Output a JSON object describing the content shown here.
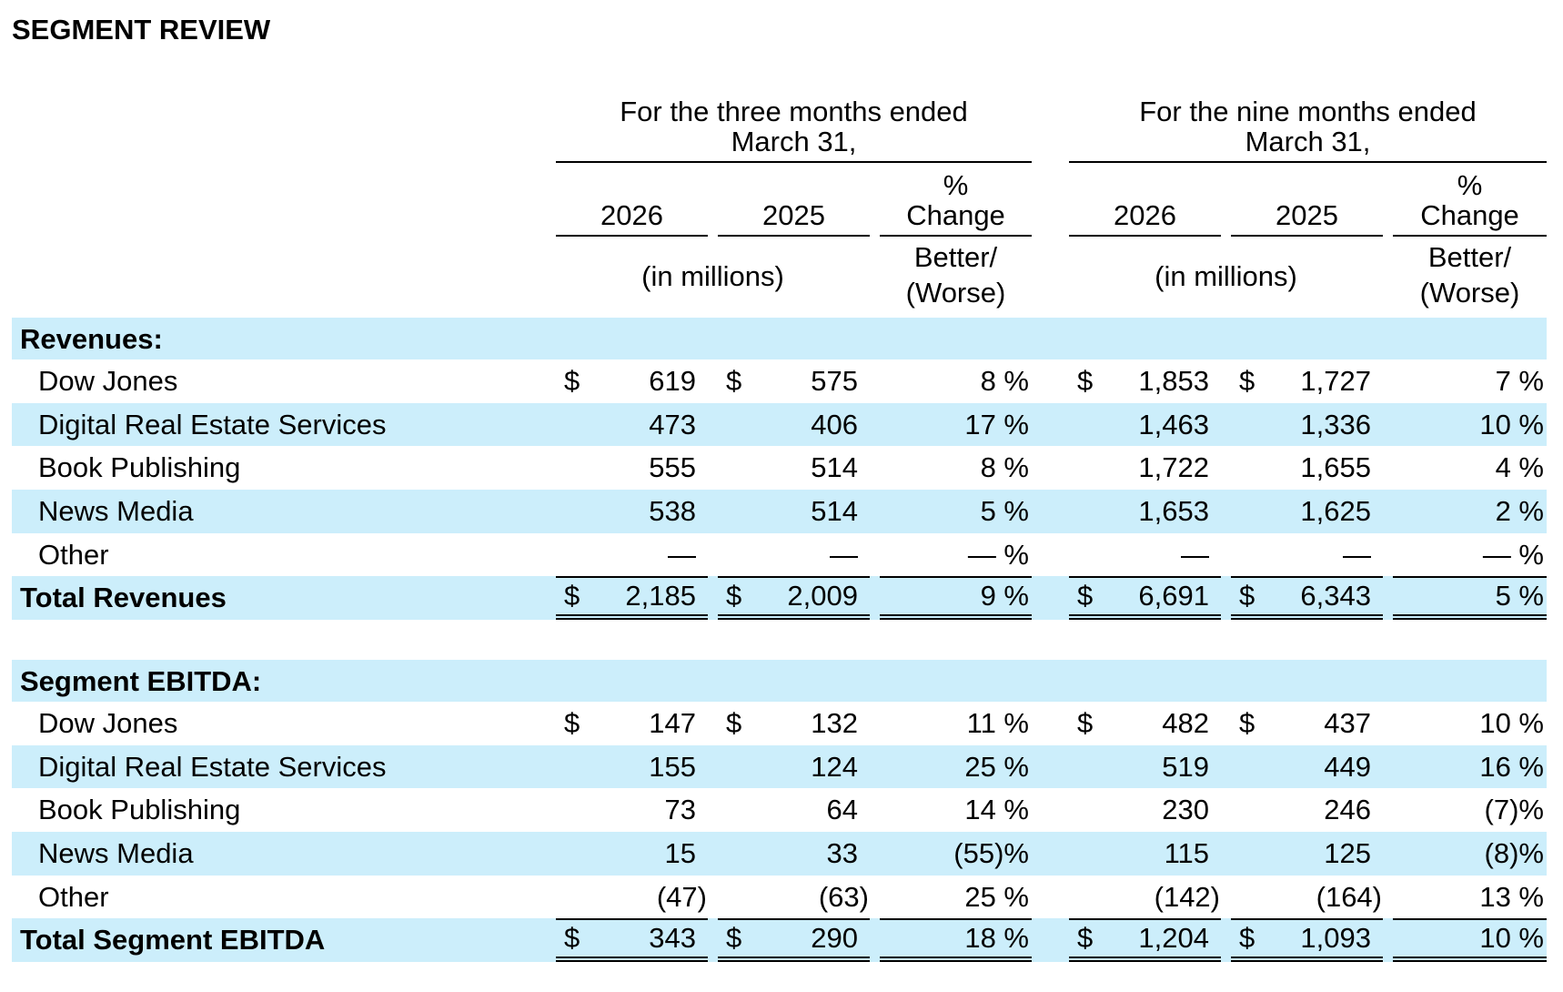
{
  "title": "SEGMENT REVIEW",
  "colors": {
    "band": "#CCEEFB",
    "text": "#000000"
  },
  "periods": [
    {
      "heading_line1": "For the three months ended",
      "heading_line2": "March 31,",
      "years": [
        "2026",
        "2025"
      ],
      "pct_line1": "%",
      "pct_line2": "Change",
      "units": "(in millions)",
      "direction_line1": "Better/",
      "direction_line2": "(Worse)"
    },
    {
      "heading_line1": "For the nine months ended",
      "heading_line2": "March 31,",
      "years": [
        "2026",
        "2025"
      ],
      "pct_line1": "%",
      "pct_line2": "Change",
      "units": "(in millions)",
      "direction_line1": "Better/",
      "direction_line2": "(Worse)"
    }
  ],
  "sections": [
    {
      "title": "Revenues:",
      "rows": [
        {
          "label": "Dow Jones",
          "type": "item",
          "currency": "$",
          "values": [
            "619",
            "575",
            "8 %",
            "1,853",
            "1,727",
            "7 %"
          ]
        },
        {
          "label": "Digital Real Estate Services",
          "type": "item",
          "currency": "",
          "values": [
            "473",
            "406",
            "17 %",
            "1,463",
            "1,336",
            "10 %"
          ]
        },
        {
          "label": "Book Publishing",
          "type": "item",
          "currency": "",
          "values": [
            "555",
            "514",
            "8 %",
            "1,722",
            "1,655",
            "4 %"
          ]
        },
        {
          "label": "News Media",
          "type": "item",
          "currency": "",
          "values": [
            "538",
            "514",
            "5 %",
            "1,653",
            "1,625",
            "2 %"
          ]
        },
        {
          "label": "Other",
          "type": "item",
          "currency": "",
          "values": [
            "—",
            "—",
            "— %",
            "—",
            "—",
            "— %"
          ]
        },
        {
          "label": "Total Revenues",
          "type": "total",
          "currency": "$",
          "values": [
            "2,185",
            "2,009",
            "9 %",
            "6,691",
            "6,343",
            "5 %"
          ]
        }
      ]
    },
    {
      "title": "Segment EBITDA:",
      "rows": [
        {
          "label": "Dow Jones",
          "type": "item",
          "currency": "$",
          "values": [
            "147",
            "132",
            "11 %",
            "482",
            "437",
            "10 %"
          ]
        },
        {
          "label": "Digital Real Estate Services",
          "type": "item",
          "currency": "",
          "values": [
            "155",
            "124",
            "25 %",
            "519",
            "449",
            "16 %"
          ]
        },
        {
          "label": "Book Publishing",
          "type": "item",
          "currency": "",
          "values": [
            "73",
            "64",
            "14 %",
            "230",
            "246",
            "(7)%"
          ]
        },
        {
          "label": "News Media",
          "type": "item",
          "currency": "",
          "values": [
            "15",
            "33",
            "(55)%",
            "115",
            "125",
            "(8)%"
          ]
        },
        {
          "label": "Other",
          "type": "item",
          "currency": "",
          "values": [
            "(47)",
            "(63)",
            "25 %",
            "(142)",
            "(164)",
            "13 %"
          ]
        },
        {
          "label": "Total Segment EBITDA",
          "type": "total",
          "currency": "$",
          "values": [
            "343",
            "290",
            "18 %",
            "1,204",
            "1,093",
            "10 %"
          ]
        }
      ]
    }
  ]
}
